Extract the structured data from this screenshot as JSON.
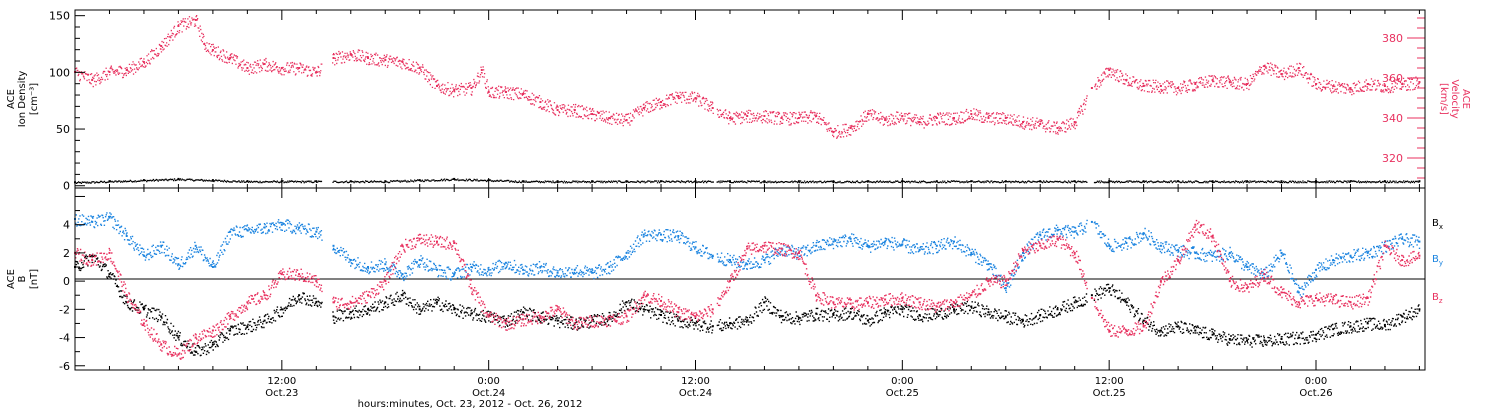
{
  "colors": {
    "axes": "#000000",
    "density": "#000000",
    "velocity": "#e8315f",
    "bx": "#000000",
    "by": "#1b84e0",
    "bz": "#e8315f"
  },
  "chart_data": [
    {
      "panel": "top",
      "type": "scatter",
      "x_unit": "hours since Oct.23 00:00 UT",
      "x_range": [
        0,
        80
      ],
      "ylim": [
        -2,
        155
      ],
      "y_ticks": [
        0,
        50,
        100,
        150
      ],
      "ylabel": [
        "ACE",
        "Ion Density",
        "[cm⁻³]"
      ],
      "y2lim": [
        305,
        394
      ],
      "y2_ticks": [
        320,
        340,
        360,
        380
      ],
      "y2label": [
        "ACE",
        "Velocity",
        "[km/s]"
      ],
      "data_gaps_hours": [
        [
          14.3,
          14.9
        ],
        [
          37.0,
          37.2
        ],
        [
          58.7,
          59.1
        ]
      ],
      "series": [
        {
          "axis": "left",
          "color_key": "density",
          "x": [
            0,
            2,
            4,
            6,
            8,
            10,
            12,
            14,
            16,
            18,
            20,
            22,
            24,
            26,
            28,
            30,
            32,
            34,
            36,
            38,
            40,
            42,
            44,
            46,
            48,
            50,
            52,
            54,
            56,
            58,
            60,
            62,
            64,
            66,
            68,
            70,
            72,
            74,
            76,
            78
          ],
          "values": [
            3,
            4,
            5,
            6,
            5,
            4,
            4,
            4,
            4,
            4,
            5,
            6,
            5,
            4,
            4,
            4,
            4,
            4,
            4,
            4,
            4,
            4,
            4,
            4,
            4,
            4,
            4,
            4,
            4,
            4,
            4,
            4,
            4,
            4,
            4,
            4,
            4,
            4,
            4,
            4
          ]
        },
        {
          "axis": "right",
          "color_key": "velocity",
          "x": [
            0,
            1,
            2,
            3,
            4,
            5,
            6,
            7,
            7.5,
            8,
            9,
            10,
            11,
            12,
            13,
            14,
            15,
            16,
            17,
            18,
            19,
            20,
            21,
            22,
            23,
            23.6,
            24,
            25,
            26,
            27,
            28,
            29,
            30,
            31,
            32,
            33,
            34,
            35,
            36,
            37,
            38,
            39,
            40,
            41,
            42,
            43,
            44,
            45,
            46,
            47,
            48,
            49,
            50,
            51,
            52,
            53,
            54,
            55,
            56,
            57,
            58,
            59,
            60,
            61,
            62,
            63,
            64,
            65,
            66,
            67,
            68,
            69,
            70,
            71,
            72,
            73,
            74,
            75,
            76,
            77,
            78
          ],
          "values": [
            363,
            359,
            363,
            364,
            368,
            376,
            386,
            389,
            377,
            374,
            370,
            365,
            367,
            365,
            365,
            363,
            370,
            372,
            370,
            369,
            368,
            365,
            356,
            354,
            355,
            364,
            353,
            353,
            352,
            348,
            344,
            344,
            342,
            340,
            339,
            345,
            348,
            351,
            350,
            345,
            340,
            341,
            341,
            340,
            340,
            341,
            333,
            335,
            342,
            339,
            341,
            338,
            340,
            340,
            342,
            340,
            340,
            338,
            337,
            335,
            338,
            355,
            364,
            359,
            356,
            356,
            355,
            357,
            359,
            358,
            357,
            366,
            362,
            365,
            357,
            356,
            355,
            357,
            356,
            357,
            358
          ]
        }
      ]
    },
    {
      "panel": "bottom",
      "type": "scatter",
      "x_unit": "hours since Oct.23 00:00 UT",
      "x_range": [
        0,
        80
      ],
      "ylim": [
        -6.3,
        6.6
      ],
      "y_ticks": [
        -6,
        -4,
        -2,
        0,
        2,
        4
      ],
      "ylabel": [
        "ACE",
        "B",
        "[nT]"
      ],
      "data_gaps_hours": [
        [
          14.3,
          14.9
        ],
        [
          37.0,
          37.2
        ],
        [
          58.7,
          59.1
        ]
      ],
      "series": [
        {
          "name": "Bx",
          "color_key": "bx",
          "x": [
            0,
            1,
            2,
            3,
            4,
            5,
            6,
            7,
            8,
            9,
            10,
            11,
            12,
            13,
            14,
            15,
            16,
            17,
            18,
            19,
            20,
            21,
            22,
            23,
            24,
            25,
            26,
            27,
            28,
            29,
            30,
            31,
            32,
            33,
            34,
            35,
            36,
            37,
            38,
            39,
            40,
            41,
            42,
            43,
            44,
            45,
            46,
            47,
            48,
            49,
            50,
            51,
            52,
            53,
            54,
            55,
            56,
            57,
            58,
            59,
            60,
            61,
            62,
            63,
            64,
            65,
            66,
            67,
            68,
            69,
            70,
            71,
            72,
            73,
            74,
            75,
            76,
            77,
            78
          ],
          "values": [
            1,
            1.8,
            0.5,
            -1.5,
            -2,
            -2.5,
            -4,
            -5,
            -4.5,
            -3.5,
            -3.2,
            -2.8,
            -2,
            -1,
            -1.5,
            -2.5,
            -2.2,
            -2,
            -1.5,
            -1,
            -2,
            -1.5,
            -2,
            -2.3,
            -2.5,
            -2.8,
            -2.2,
            -2.5,
            -2.8,
            -3,
            -2.8,
            -2.6,
            -1.5,
            -2,
            -2.4,
            -2.8,
            -3,
            -3.2,
            -3,
            -2.8,
            -1.5,
            -2.5,
            -2.6,
            -2.3,
            -2.4,
            -2.2,
            -2.8,
            -2.2,
            -2,
            -2.4,
            -2.3,
            -2,
            -1.8,
            -2.2,
            -2.5,
            -2.8,
            -2.4,
            -2,
            -1.5,
            -1,
            -0.5,
            -1.5,
            -2.8,
            -3.5,
            -3.2,
            -3.5,
            -3.8,
            -4.1,
            -4.2,
            -4.2,
            -4.1,
            -4,
            -3.8,
            -3.4,
            -3.2,
            -3,
            -3.1,
            -2.5,
            -2
          ]
        },
        {
          "name": "By",
          "color_key": "by",
          "x": [
            0,
            1,
            2,
            3,
            4,
            5,
            6,
            7,
            8,
            9,
            10,
            11,
            12,
            13,
            14,
            15,
            16,
            17,
            18,
            19,
            20,
            21,
            22,
            23,
            24,
            25,
            26,
            27,
            28,
            29,
            30,
            31,
            32,
            33,
            34,
            35,
            36,
            37,
            38,
            39,
            40,
            41,
            42,
            43,
            44,
            45,
            46,
            47,
            48,
            49,
            50,
            51,
            52,
            53,
            54,
            55,
            56,
            57,
            58,
            59,
            60,
            61,
            62,
            63,
            64,
            65,
            66,
            67,
            68,
            69,
            70,
            71,
            72,
            73,
            74,
            75,
            76,
            77,
            78
          ],
          "values": [
            4.4,
            4.2,
            4.5,
            3.2,
            1.8,
            2.5,
            1.2,
            2.5,
            1,
            3.5,
            3.6,
            3.8,
            4,
            3.8,
            3.5,
            2.5,
            1.5,
            1,
            1.2,
            0.5,
            1.5,
            0.8,
            0.5,
            1,
            0.8,
            1.3,
            0.8,
            1,
            0.6,
            0.8,
            0.6,
            1,
            2,
            3.3,
            3.3,
            3.2,
            2.4,
            1.8,
            1.5,
            1.2,
            1.5,
            2.3,
            2,
            2.5,
            2.8,
            3,
            2.5,
            2.8,
            2.6,
            2.2,
            2.5,
            2.8,
            2,
            1.2,
            -0.5,
            2,
            3.3,
            3.6,
            3.5,
            4.2,
            2.5,
            2.7,
            3.4,
            2.5,
            2.2,
            2,
            1.8,
            2,
            1,
            0.5,
            2,
            -0.8,
            0.8,
            1.5,
            1.8,
            2,
            2.5,
            3,
            2.8
          ]
        },
        {
          "name": "Bz",
          "color_key": "bz",
          "x": [
            0,
            1,
            2,
            3,
            4,
            5,
            6,
            7,
            8,
            9,
            10,
            11,
            12,
            13,
            14,
            15,
            16,
            17,
            18,
            19,
            20,
            21,
            22,
            23,
            24,
            25,
            26,
            27,
            28,
            29,
            30,
            31,
            32,
            33,
            34,
            35,
            36,
            37,
            38,
            39,
            40,
            41,
            42,
            43,
            44,
            45,
            46,
            47,
            48,
            49,
            50,
            51,
            52,
            53,
            54,
            55,
            56,
            57,
            58,
            59,
            60,
            61,
            62,
            63,
            64,
            65,
            66,
            67,
            68,
            69,
            70,
            71,
            72,
            73,
            74,
            75,
            76,
            77,
            78
          ],
          "values": [
            2,
            1.5,
            2,
            -1,
            -3,
            -4.5,
            -5.2,
            -4,
            -3.5,
            -2.5,
            -1.5,
            -1,
            0.5,
            0.5,
            0,
            -1.5,
            -1.5,
            -1,
            0,
            2.5,
            3,
            2.8,
            2.7,
            -0.5,
            -2.5,
            -3,
            -2.7,
            -2.5,
            -2,
            -3,
            -2.8,
            -2.7,
            -2.5,
            -1,
            -1.4,
            -2.2,
            -2.5,
            -2,
            0,
            2.3,
            2.5,
            2.3,
            2,
            -1,
            -1.5,
            -1.6,
            -1.5,
            -1.3,
            -1.2,
            -1.5,
            -1.8,
            -1.5,
            -1,
            0,
            0,
            2.2,
            2.5,
            3,
            2,
            -1.2,
            -3.5,
            -3.5,
            -3.2,
            0,
            1.5,
            4,
            3.2,
            0,
            -0.5,
            0.5,
            -0.8,
            -1.5,
            -1.2,
            -1.3,
            -1.5,
            -1.2,
            2.5,
            1.5,
            1.8
          ]
        }
      ],
      "legend": {
        "placement": "right",
        "items": [
          {
            "base": "B",
            "sub": "x",
            "color_key": "bx"
          },
          {
            "base": "B",
            "sub": "y",
            "color_key": "by"
          },
          {
            "base": "B",
            "sub": "z",
            "color_key": "bz"
          }
        ]
      }
    }
  ],
  "x_axis": {
    "ticks": [
      {
        "hour": 12,
        "time": "12:00",
        "date": "Oct.23"
      },
      {
        "hour": 24,
        "time": "0:00",
        "date": "Oct.24"
      },
      {
        "hour": 36,
        "time": "12:00",
        "date": "Oct.24"
      },
      {
        "hour": 48,
        "time": "0:00",
        "date": "Oct.25"
      },
      {
        "hour": 60,
        "time": "12:00",
        "date": "Oct.25"
      },
      {
        "hour": 72,
        "time": "0:00",
        "date": "Oct.26"
      }
    ],
    "label": "hours:minutes, Oct. 23, 2012 - Oct. 26, 2012"
  }
}
